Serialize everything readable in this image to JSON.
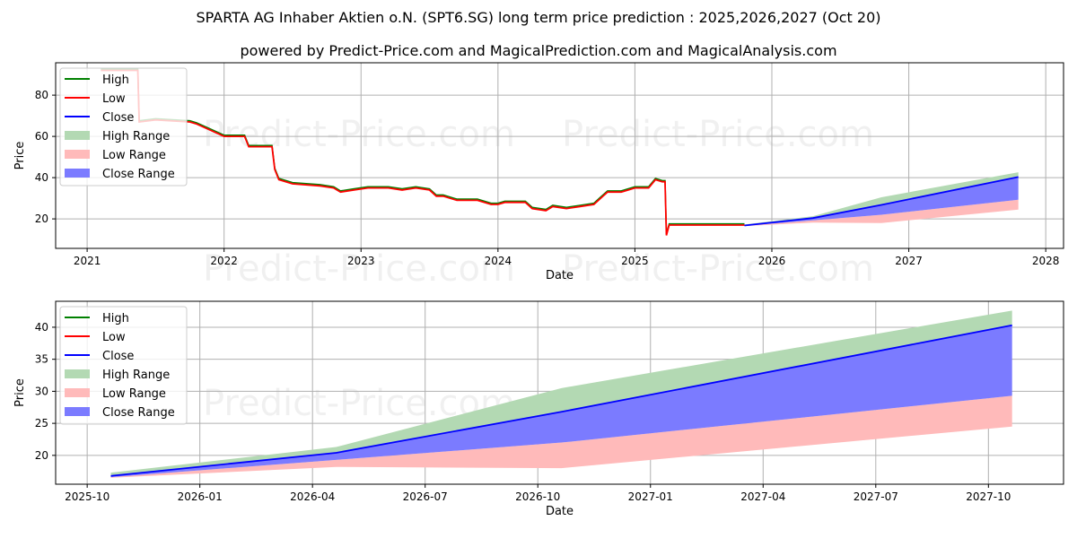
{
  "title": "SPARTA AG Inhaber Aktien o.N. (SPT6.SG) long term price prediction : 2025,2026,2027 (Oct 20)",
  "subtitle": "powered by Predict-Price.com and MagicalPrediction.com and MagicalAnalysis.com",
  "watermark": "Predict-Price.com",
  "colors": {
    "high": "#008000",
    "low": "#ff0000",
    "close": "#0000ff",
    "high_range": "#b3d9b3",
    "low_range": "#ffbaba",
    "close_range": "#7b7bff"
  },
  "legend": [
    "High",
    "Low",
    "Close",
    "High Range",
    "Low Range",
    "Close Range"
  ],
  "chart_data": [
    {
      "type": "line",
      "xlabel": "Date",
      "ylabel": "Price",
      "xlim": [
        2020.77,
        2028.13
      ],
      "ylim": [
        5.7,
        95.7
      ],
      "xticks": [
        2021,
        2022,
        2023,
        2024,
        2025,
        2026,
        2027,
        2028
      ],
      "xtick_labels": [
        "2021",
        "2022",
        "2023",
        "2024",
        "2025",
        "2026",
        "2027",
        "2028"
      ],
      "yticks": [
        20,
        40,
        60,
        80
      ],
      "history": {
        "x": [
          2021.1,
          2021.37,
          2021.38,
          2021.5,
          2021.75,
          2021.8,
          2021.9,
          2022.0,
          2022.15,
          2022.18,
          2022.35,
          2022.37,
          2022.4,
          2022.5,
          2022.7,
          2022.8,
          2022.85,
          2022.95,
          2023.05,
          2023.2,
          2023.3,
          2023.4,
          2023.5,
          2023.55,
          2023.6,
          2023.7,
          2023.85,
          2023.95,
          2024.0,
          2024.05,
          2024.2,
          2024.25,
          2024.35,
          2024.4,
          2024.5,
          2024.6,
          2024.7,
          2024.75,
          2024.8,
          2024.9,
          2025.0,
          2025.1,
          2025.15,
          2025.2,
          2025.22,
          2025.23,
          2025.25,
          2025.4,
          2025.6,
          2025.8
        ],
        "low": [
          92,
          92,
          67,
          68,
          67,
          66,
          63,
          60,
          60,
          55,
          55,
          44,
          39,
          37,
          36,
          35,
          33,
          34,
          35,
          35,
          34,
          35,
          34,
          31,
          31,
          29,
          29,
          27,
          27,
          28,
          28,
          25,
          24,
          26,
          25,
          26,
          27,
          30,
          33,
          33,
          35,
          35,
          39,
          38,
          38,
          12,
          17,
          17,
          17,
          17
        ]
      },
      "forecast": {
        "x": [
          2025.8,
          2026.3,
          2026.8,
          2027.8
        ],
        "close": [
          16.8,
          20.4,
          26.8,
          40.3
        ],
        "high_range": [
          17.3,
          21.3,
          30.5,
          42.6
        ],
        "close_range_low": [
          16.6,
          19.3,
          22.0,
          29.3
        ],
        "low_range": [
          16.5,
          18.2,
          18.0,
          24.5
        ]
      }
    },
    {
      "type": "area",
      "xlabel": "Date",
      "ylabel": "Price",
      "xlim": [
        -0.84,
        26.0
      ],
      "ylim": [
        15.5,
        44.05
      ],
      "xticks": [
        0,
        3,
        6,
        9,
        12,
        15,
        18,
        21,
        24
      ],
      "xtick_labels": [
        "2025-10",
        "2026-01",
        "2026-04",
        "2026-07",
        "2026-10",
        "2027-01",
        "2027-04",
        "2027-07",
        "2027-10"
      ],
      "yticks": [
        20,
        25,
        30,
        35,
        40
      ],
      "forecast": {
        "x": [
          0.63,
          6.63,
          12.63,
          24.63
        ],
        "close": [
          16.8,
          20.4,
          26.8,
          40.3
        ],
        "high_range": [
          17.3,
          21.3,
          30.5,
          42.6
        ],
        "close_range_low": [
          16.6,
          19.3,
          22.0,
          29.3
        ],
        "low_range": [
          16.5,
          18.2,
          18.0,
          24.5
        ]
      }
    }
  ]
}
